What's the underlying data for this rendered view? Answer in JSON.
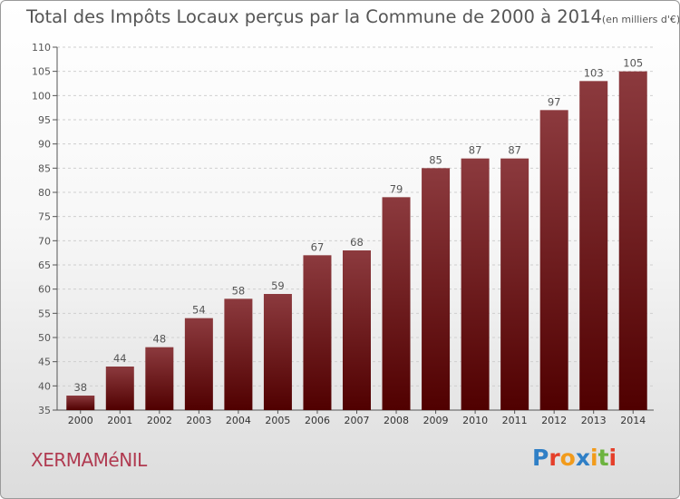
{
  "title": "Total des Impôts Locaux perçus par la Commune de 2000 à 2014",
  "unit": "(en milliers d'€)",
  "commune": "XERMAMéNIL",
  "logo_text": "Proxiti",
  "logo_letter_colors": [
    "#2f7fc6",
    "#e53f2a",
    "#f29b1b",
    "#2f7fc6",
    "#f29b1b",
    "#6db33f",
    "#e53f2a"
  ],
  "colors": {
    "bar_top": "#8c3a3e",
    "bar_bottom": "#500000",
    "axis": "#555555",
    "grid": "#cfcfcf",
    "text": "#555555"
  },
  "chart_data": {
    "type": "bar",
    "categories": [
      "2000",
      "2001",
      "2002",
      "2003",
      "2004",
      "2005",
      "2006",
      "2007",
      "2008",
      "2009",
      "2010",
      "2011",
      "2012",
      "2013",
      "2014"
    ],
    "values": [
      38,
      44,
      48,
      54,
      58,
      59,
      67,
      68,
      79,
      85,
      87,
      87,
      97,
      103,
      105
    ],
    "ylim": [
      35,
      110
    ],
    "yticks": [
      35,
      40,
      45,
      50,
      55,
      60,
      65,
      70,
      75,
      80,
      85,
      90,
      95,
      100,
      105,
      110
    ],
    "grid": true,
    "data_labels": true
  }
}
